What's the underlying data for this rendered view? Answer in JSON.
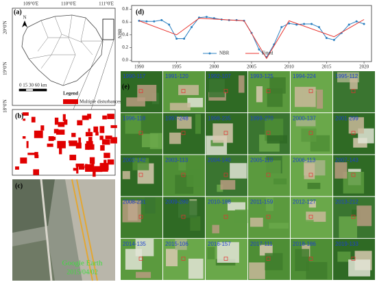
{
  "panels": {
    "a": {
      "label": "(a)",
      "lon_labels": [
        "109°0'E",
        "110°0'E",
        "111°0'E"
      ],
      "lat_labels": [
        "20°0'N",
        "19°0'N",
        "18°0'N"
      ],
      "north": "N",
      "scale": "0 15 30    60 km",
      "legend_title": "Legend",
      "legend_item": "Multiple disturbances"
    },
    "b": {
      "label": "(b)"
    },
    "c": {
      "label": "(c)",
      "source": "Google Earth",
      "date": "2015/04/02"
    },
    "e": {
      "label": "(e)",
      "tiles": [
        "1990-117",
        "1991-120",
        "1992-107",
        "1993-125",
        "1994-224",
        "1995-112",
        "1996-118",
        "1997-248",
        "1998-235",
        "1999-270",
        "2000-137",
        "2001-299",
        "2002-142",
        "2003-113",
        "2004-140",
        "2005-110",
        "2006-113",
        "2007-143",
        "2008-231",
        "2009-280",
        "2010-188",
        "2011-159",
        "2012-127",
        "2013-212",
        "2014-135",
        "2015-106",
        "2016-157",
        "2017-111",
        "2018-186",
        "2019-133"
      ]
    }
  },
  "chart_data": {
    "type": "line",
    "label": "(d)",
    "y_label": "NBR",
    "xlim": [
      1989,
      2021
    ],
    "xticks": [
      1990,
      1995,
      2000,
      2005,
      2010,
      2015,
      2020
    ],
    "ylim": [
      -0.02,
      0.86
    ],
    "yticks": [
      {
        "value": 0,
        "label": "0.0"
      },
      0.2,
      0.4,
      0.6,
      0.8
    ],
    "legend": "bottom",
    "series": [
      {
        "name": "NBR",
        "color": "#2a7fc0",
        "x": [
          1990,
          1991,
          1992,
          1993,
          1994,
          1995,
          1996,
          1997,
          1998,
          1999,
          2000,
          2001,
          2002,
          2003,
          2004,
          2005,
          2006,
          2007,
          2008,
          2009,
          2010,
          2011,
          2012,
          2013,
          2014,
          2015,
          2016,
          2017,
          2018,
          2019,
          2020
        ],
        "values": [
          0.62,
          0.61,
          0.61,
          0.63,
          0.56,
          0.34,
          0.34,
          0.52,
          0.67,
          0.68,
          0.66,
          0.64,
          0.63,
          0.63,
          0.62,
          0.43,
          0.17,
          0.05,
          0.25,
          0.52,
          0.58,
          0.56,
          0.57,
          0.57,
          0.52,
          0.35,
          0.32,
          0.43,
          0.56,
          0.61,
          0.57
        ]
      },
      {
        "name": "Fitted",
        "color": "#e8322c",
        "x": [
          1990,
          1995,
          1998,
          2004,
          2007,
          2010,
          2016,
          2020
        ],
        "values": [
          0.62,
          0.4,
          0.66,
          0.62,
          0.03,
          0.62,
          0.37,
          0.64
        ]
      }
    ]
  }
}
